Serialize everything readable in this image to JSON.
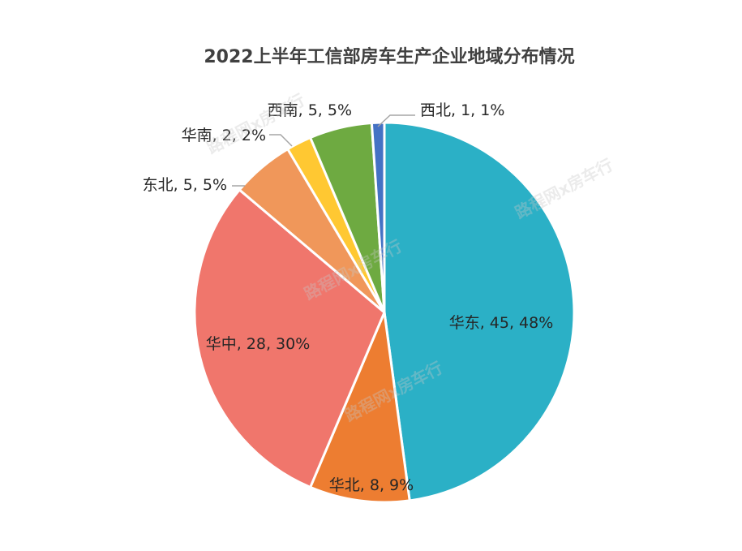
{
  "chart_data": {
    "type": "pie",
    "title": "2022上半年工信部房车生产企业地域分布情况",
    "slices": [
      {
        "name": "华东",
        "value": 45,
        "percent": "48%",
        "color": "#2BB0C6",
        "label": "华东, 45, 48%"
      },
      {
        "name": "华北",
        "value": 8,
        "percent": "9%",
        "color": "#ED7D31",
        "label": "华北, 8, 9%"
      },
      {
        "name": "华中",
        "value": 28,
        "percent": "30%",
        "color": "#F0766C",
        "label": "华中, 28, 30%"
      },
      {
        "name": "东北",
        "value": 5,
        "percent": "5%",
        "color": "#F0975A",
        "label": "东北, 5, 5%"
      },
      {
        "name": "华南",
        "value": 2,
        "percent": "2%",
        "color": "#FFC832",
        "label": "华南, 2, 2%"
      },
      {
        "name": "西南",
        "value": 5,
        "percent": "5%",
        "color": "#6EAA41",
        "label": "西南, 5, 5%"
      },
      {
        "name": "西北",
        "value": 1,
        "percent": "1%",
        "color": "#4472C4",
        "label": "西北, 1, 1%"
      }
    ],
    "watermark": "路程网x房车行"
  }
}
